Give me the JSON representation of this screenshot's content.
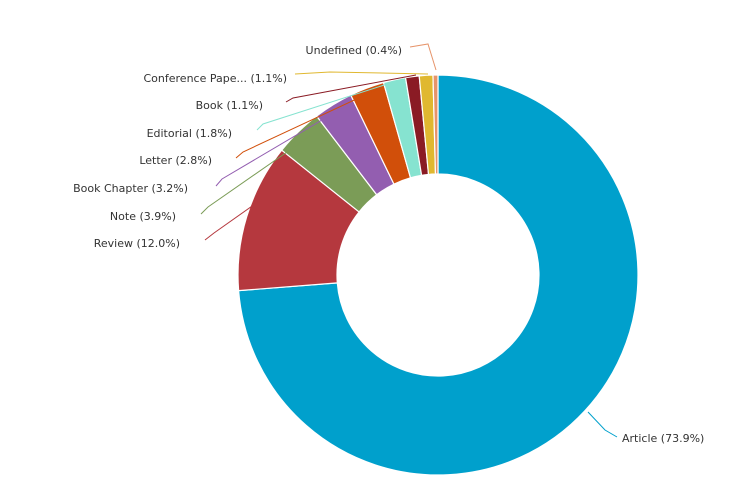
{
  "chart_data": {
    "type": "pie",
    "variant": "donut",
    "start_angle_deg": 0,
    "direction": "clockwise",
    "slices": [
      {
        "label": "Article (73.9%)",
        "value": 73.9,
        "color": "#00a0cc"
      },
      {
        "label": "Review (12.0%)",
        "value": 12.0,
        "color": "#b5383e"
      },
      {
        "label": "Note (3.9%)",
        "value": 3.9,
        "color": "#7b9c57"
      },
      {
        "label": "Book Chapter (3.2%)",
        "value": 3.2,
        "color": "#935eb0"
      },
      {
        "label": "Letter (2.8%)",
        "value": 2.8,
        "color": "#d14f0a"
      },
      {
        "label": "Editorial (1.8%)",
        "value": 1.8,
        "color": "#86e3d0"
      },
      {
        "label": "Book (1.1%)",
        "value": 1.1,
        "color": "#8a1b24"
      },
      {
        "label": "Conference Pape... (1.1%)",
        "value": 1.1,
        "color": "#e0b830"
      },
      {
        "label": "Undefined (0.4%)",
        "value": 0.4,
        "color": "#e6946a"
      }
    ],
    "legend": "none"
  }
}
